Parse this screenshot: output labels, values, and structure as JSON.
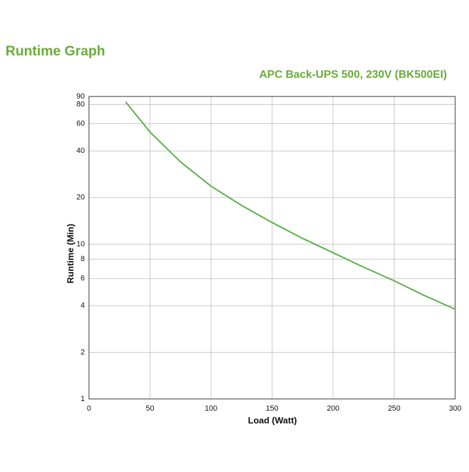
{
  "page_title": "Runtime Graph",
  "chart_data": {
    "type": "line",
    "title": "APC Back-UPS 500, 230V (BK500EI)",
    "x_label": "Load (Watt)",
    "y_label": "Runtime (Min)",
    "x": [
      30,
      50,
      75,
      100,
      125,
      150,
      175,
      200,
      225,
      250,
      275,
      300
    ],
    "values": [
      83,
      53,
      34,
      23.7,
      17.8,
      13.8,
      10.9,
      8.8,
      7.1,
      5.8,
      4.65,
      3.8
    ],
    "color": "#5bb04a",
    "xlim": [
      0,
      300
    ],
    "xticks": [
      0,
      50,
      100,
      150,
      200,
      250,
      300
    ],
    "ylim": [
      1,
      90
    ],
    "yticks": [
      1,
      2,
      4,
      6,
      8,
      10,
      20,
      40,
      60,
      80,
      90
    ],
    "y_scale": "log",
    "grid": true
  }
}
